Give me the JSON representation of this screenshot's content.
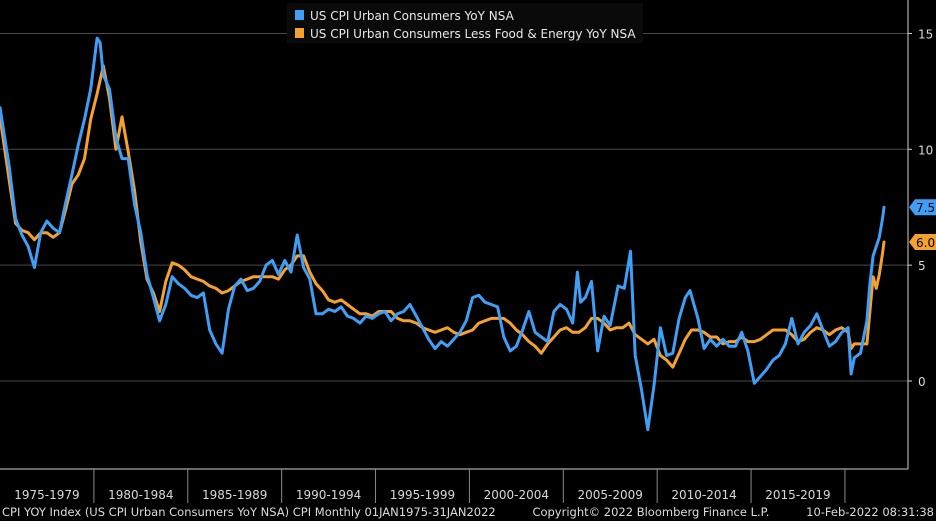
{
  "chart_data": {
    "type": "line",
    "title": "",
    "xlabel": "",
    "ylabel": "",
    "frequency": "Monthly",
    "ylim": [
      -3.5,
      16.5
    ],
    "yticks": [
      0,
      5,
      10,
      15
    ],
    "y_axis_side": "right",
    "grid": true,
    "legend_position": "top-center",
    "x_categories": [
      "1975-1979",
      "1980-1984",
      "1985-1989",
      "1990-1994",
      "1995-1999",
      "2000-2004",
      "2005-2009",
      "2010-2014",
      "2015-2019"
    ],
    "x_start": 1975.0,
    "x_end": 2022.08,
    "series": [
      {
        "name": "US CPI Urban Consumers YoY NSA",
        "color": "#3f9ef5",
        "last_value_label": "7.5",
        "points": [
          [
            1975.0,
            11.8
          ],
          [
            1975.5,
            9.2
          ],
          [
            1975.83,
            7.0
          ],
          [
            1976.17,
            6.3
          ],
          [
            1976.5,
            5.8
          ],
          [
            1976.83,
            4.9
          ],
          [
            1977.17,
            6.4
          ],
          [
            1977.5,
            6.9
          ],
          [
            1977.83,
            6.6
          ],
          [
            1978.17,
            6.4
          ],
          [
            1978.5,
            7.7
          ],
          [
            1978.83,
            8.9
          ],
          [
            1979.17,
            10.2
          ],
          [
            1979.5,
            11.3
          ],
          [
            1979.83,
            12.6
          ],
          [
            1980.17,
            14.8
          ],
          [
            1980.33,
            14.6
          ],
          [
            1980.5,
            13.2
          ],
          [
            1980.83,
            12.6
          ],
          [
            1981.17,
            10.5
          ],
          [
            1981.5,
            9.6
          ],
          [
            1981.83,
            9.6
          ],
          [
            1982.17,
            7.6
          ],
          [
            1982.5,
            6.4
          ],
          [
            1982.83,
            4.6
          ],
          [
            1983.17,
            3.6
          ],
          [
            1983.5,
            2.6
          ],
          [
            1983.83,
            3.3
          ],
          [
            1984.17,
            4.5
          ],
          [
            1984.5,
            4.2
          ],
          [
            1984.83,
            4.0
          ],
          [
            1985.17,
            3.7
          ],
          [
            1985.5,
            3.6
          ],
          [
            1985.83,
            3.8
          ],
          [
            1986.17,
            2.2
          ],
          [
            1986.5,
            1.6
          ],
          [
            1986.83,
            1.2
          ],
          [
            1987.17,
            3.1
          ],
          [
            1987.5,
            4.1
          ],
          [
            1987.83,
            4.4
          ],
          [
            1988.17,
            3.9
          ],
          [
            1988.5,
            4.0
          ],
          [
            1988.83,
            4.3
          ],
          [
            1989.17,
            5.0
          ],
          [
            1989.5,
            5.2
          ],
          [
            1989.83,
            4.6
          ],
          [
            1990.17,
            5.2
          ],
          [
            1990.5,
            4.7
          ],
          [
            1990.83,
            6.3
          ],
          [
            1991.17,
            4.9
          ],
          [
            1991.5,
            4.4
          ],
          [
            1991.83,
            2.9
          ],
          [
            1992.17,
            2.9
          ],
          [
            1992.5,
            3.1
          ],
          [
            1992.83,
            3.0
          ],
          [
            1993.17,
            3.2
          ],
          [
            1993.5,
            2.8
          ],
          [
            1993.83,
            2.7
          ],
          [
            1994.17,
            2.5
          ],
          [
            1994.5,
            2.8
          ],
          [
            1994.83,
            2.7
          ],
          [
            1995.17,
            2.9
          ],
          [
            1995.5,
            3.0
          ],
          [
            1995.83,
            2.6
          ],
          [
            1996.17,
            2.9
          ],
          [
            1996.5,
            3.0
          ],
          [
            1996.83,
            3.3
          ],
          [
            1997.17,
            2.8
          ],
          [
            1997.5,
            2.3
          ],
          [
            1997.83,
            1.8
          ],
          [
            1998.17,
            1.4
          ],
          [
            1998.5,
            1.7
          ],
          [
            1998.83,
            1.5
          ],
          [
            1999.17,
            1.8
          ],
          [
            1999.5,
            2.1
          ],
          [
            1999.83,
            2.6
          ],
          [
            2000.17,
            3.6
          ],
          [
            2000.5,
            3.7
          ],
          [
            2000.83,
            3.4
          ],
          [
            2001.17,
            3.3
          ],
          [
            2001.5,
            3.2
          ],
          [
            2001.83,
            1.9
          ],
          [
            2002.17,
            1.3
          ],
          [
            2002.5,
            1.5
          ],
          [
            2002.83,
            2.2
          ],
          [
            2003.17,
            3.0
          ],
          [
            2003.5,
            2.1
          ],
          [
            2003.83,
            1.9
          ],
          [
            2004.17,
            1.7
          ],
          [
            2004.5,
            3.0
          ],
          [
            2004.83,
            3.3
          ],
          [
            2005.17,
            3.1
          ],
          [
            2005.5,
            2.5
          ],
          [
            2005.75,
            4.7
          ],
          [
            2005.92,
            3.4
          ],
          [
            2006.17,
            3.6
          ],
          [
            2006.5,
            4.3
          ],
          [
            2006.83,
            1.3
          ],
          [
            2007.17,
            2.8
          ],
          [
            2007.5,
            2.4
          ],
          [
            2007.92,
            4.1
          ],
          [
            2008.25,
            4.0
          ],
          [
            2008.58,
            5.6
          ],
          [
            2008.83,
            1.1
          ],
          [
            2009.17,
            -0.4
          ],
          [
            2009.5,
            -2.1
          ],
          [
            2009.83,
            -0.2
          ],
          [
            2010.17,
            2.3
          ],
          [
            2010.5,
            1.1
          ],
          [
            2010.83,
            1.2
          ],
          [
            2011.17,
            2.7
          ],
          [
            2011.5,
            3.6
          ],
          [
            2011.75,
            3.9
          ],
          [
            2012.17,
            2.7
          ],
          [
            2012.5,
            1.4
          ],
          [
            2012.83,
            1.8
          ],
          [
            2013.17,
            1.5
          ],
          [
            2013.5,
            1.8
          ],
          [
            2013.83,
            1.5
          ],
          [
            2014.17,
            1.5
          ],
          [
            2014.5,
            2.1
          ],
          [
            2014.83,
            1.3
          ],
          [
            2015.17,
            -0.1
          ],
          [
            2015.5,
            0.2
          ],
          [
            2015.83,
            0.5
          ],
          [
            2016.17,
            0.9
          ],
          [
            2016.5,
            1.1
          ],
          [
            2016.83,
            1.6
          ],
          [
            2017.17,
            2.7
          ],
          [
            2017.5,
            1.6
          ],
          [
            2017.83,
            2.1
          ],
          [
            2018.17,
            2.4
          ],
          [
            2018.5,
            2.9
          ],
          [
            2018.83,
            2.2
          ],
          [
            2019.17,
            1.5
          ],
          [
            2019.5,
            1.7
          ],
          [
            2019.83,
            2.1
          ],
          [
            2020.17,
            2.3
          ],
          [
            2020.33,
            0.3
          ],
          [
            2020.5,
            1.0
          ],
          [
            2020.83,
            1.2
          ],
          [
            2021.17,
            2.6
          ],
          [
            2021.33,
            4.2
          ],
          [
            2021.5,
            5.4
          ],
          [
            2021.83,
            6.2
          ],
          [
            2022.0,
            7.0
          ],
          [
            2022.08,
            7.5
          ]
        ]
      },
      {
        "name": "US CPI Urban Consumers Less Food & Energy YoY NSA",
        "color": "#f5a12e",
        "last_value_label": "6.0",
        "points": [
          [
            1975.0,
            11.4
          ],
          [
            1975.5,
            8.6
          ],
          [
            1975.83,
            6.8
          ],
          [
            1976.17,
            6.5
          ],
          [
            1976.5,
            6.4
          ],
          [
            1976.83,
            6.1
          ],
          [
            1977.17,
            6.4
          ],
          [
            1977.5,
            6.4
          ],
          [
            1977.83,
            6.2
          ],
          [
            1978.17,
            6.4
          ],
          [
            1978.5,
            7.4
          ],
          [
            1978.83,
            8.5
          ],
          [
            1979.17,
            8.9
          ],
          [
            1979.5,
            9.6
          ],
          [
            1979.83,
            11.3
          ],
          [
            1980.17,
            12.4
          ],
          [
            1980.5,
            13.6
          ],
          [
            1980.83,
            12.2
          ],
          [
            1981.17,
            10.0
          ],
          [
            1981.5,
            11.4
          ],
          [
            1981.83,
            9.9
          ],
          [
            1982.17,
            8.2
          ],
          [
            1982.5,
            6.0
          ],
          [
            1982.83,
            4.4
          ],
          [
            1983.17,
            3.8
          ],
          [
            1983.5,
            3.0
          ],
          [
            1983.83,
            4.3
          ],
          [
            1984.17,
            5.1
          ],
          [
            1984.5,
            5.0
          ],
          [
            1984.83,
            4.8
          ],
          [
            1985.17,
            4.5
          ],
          [
            1985.5,
            4.4
          ],
          [
            1985.83,
            4.3
          ],
          [
            1986.17,
            4.1
          ],
          [
            1986.5,
            4.0
          ],
          [
            1986.83,
            3.8
          ],
          [
            1987.17,
            3.9
          ],
          [
            1987.5,
            4.1
          ],
          [
            1987.83,
            4.3
          ],
          [
            1988.17,
            4.4
          ],
          [
            1988.5,
            4.5
          ],
          [
            1988.83,
            4.5
          ],
          [
            1989.17,
            4.5
          ],
          [
            1989.5,
            4.5
          ],
          [
            1989.83,
            4.4
          ],
          [
            1990.17,
            4.8
          ],
          [
            1990.5,
            5.0
          ],
          [
            1990.83,
            5.4
          ],
          [
            1991.17,
            5.4
          ],
          [
            1991.5,
            4.7
          ],
          [
            1991.83,
            4.2
          ],
          [
            1992.17,
            3.9
          ],
          [
            1992.5,
            3.5
          ],
          [
            1992.83,
            3.4
          ],
          [
            1993.17,
            3.5
          ],
          [
            1993.5,
            3.3
          ],
          [
            1993.83,
            3.1
          ],
          [
            1994.17,
            2.9
          ],
          [
            1994.5,
            2.9
          ],
          [
            1994.83,
            2.8
          ],
          [
            1995.17,
            3.0
          ],
          [
            1995.5,
            3.0
          ],
          [
            1995.83,
            3.0
          ],
          [
            1996.17,
            2.7
          ],
          [
            1996.5,
            2.6
          ],
          [
            1996.83,
            2.6
          ],
          [
            1997.17,
            2.5
          ],
          [
            1997.5,
            2.3
          ],
          [
            1997.83,
            2.2
          ],
          [
            1998.17,
            2.1
          ],
          [
            1998.5,
            2.2
          ],
          [
            1998.83,
            2.3
          ],
          [
            1999.17,
            2.1
          ],
          [
            1999.5,
            2.0
          ],
          [
            1999.83,
            2.1
          ],
          [
            2000.17,
            2.2
          ],
          [
            2000.5,
            2.5
          ],
          [
            2000.83,
            2.6
          ],
          [
            2001.17,
            2.7
          ],
          [
            2001.5,
            2.7
          ],
          [
            2001.83,
            2.7
          ],
          [
            2002.17,
            2.5
          ],
          [
            2002.5,
            2.2
          ],
          [
            2002.83,
            2.0
          ],
          [
            2003.17,
            1.7
          ],
          [
            2003.5,
            1.5
          ],
          [
            2003.83,
            1.2
          ],
          [
            2004.17,
            1.6
          ],
          [
            2004.5,
            1.9
          ],
          [
            2004.83,
            2.2
          ],
          [
            2005.17,
            2.3
          ],
          [
            2005.5,
            2.1
          ],
          [
            2005.83,
            2.1
          ],
          [
            2006.17,
            2.3
          ],
          [
            2006.5,
            2.7
          ],
          [
            2006.83,
            2.7
          ],
          [
            2007.17,
            2.5
          ],
          [
            2007.5,
            2.2
          ],
          [
            2007.83,
            2.3
          ],
          [
            2008.17,
            2.3
          ],
          [
            2008.5,
            2.5
          ],
          [
            2008.83,
            2.0
          ],
          [
            2009.17,
            1.8
          ],
          [
            2009.5,
            1.6
          ],
          [
            2009.83,
            1.8
          ],
          [
            2010.17,
            1.1
          ],
          [
            2010.5,
            0.9
          ],
          [
            2010.83,
            0.6
          ],
          [
            2011.17,
            1.2
          ],
          [
            2011.5,
            1.8
          ],
          [
            2011.83,
            2.2
          ],
          [
            2012.17,
            2.2
          ],
          [
            2012.5,
            2.1
          ],
          [
            2012.83,
            1.9
          ],
          [
            2013.17,
            1.9
          ],
          [
            2013.5,
            1.6
          ],
          [
            2013.83,
            1.7
          ],
          [
            2014.17,
            1.7
          ],
          [
            2014.5,
            1.9
          ],
          [
            2014.83,
            1.7
          ],
          [
            2015.17,
            1.7
          ],
          [
            2015.5,
            1.8
          ],
          [
            2015.83,
            2.0
          ],
          [
            2016.17,
            2.2
          ],
          [
            2016.5,
            2.2
          ],
          [
            2016.83,
            2.2
          ],
          [
            2017.17,
            2.0
          ],
          [
            2017.5,
            1.7
          ],
          [
            2017.83,
            1.8
          ],
          [
            2018.17,
            2.1
          ],
          [
            2018.5,
            2.3
          ],
          [
            2018.83,
            2.2
          ],
          [
            2019.17,
            2.0
          ],
          [
            2019.5,
            2.2
          ],
          [
            2019.83,
            2.3
          ],
          [
            2020.17,
            2.1
          ],
          [
            2020.33,
            1.4
          ],
          [
            2020.5,
            1.6
          ],
          [
            2020.83,
            1.6
          ],
          [
            2021.17,
            1.6
          ],
          [
            2021.33,
            3.0
          ],
          [
            2021.5,
            4.5
          ],
          [
            2021.67,
            4.0
          ],
          [
            2021.83,
            4.6
          ],
          [
            2022.0,
            5.5
          ],
          [
            2022.08,
            6.0
          ]
        ]
      }
    ]
  },
  "footer": {
    "left": "CPI YOY Index (US CPI Urban Consumers YoY NSA) CPI  Monthly 01JAN1975-31JAN2022",
    "center": "Copyright© 2022 Bloomberg Finance L.P.",
    "right": "10-Feb-2022 08:31:38"
  }
}
